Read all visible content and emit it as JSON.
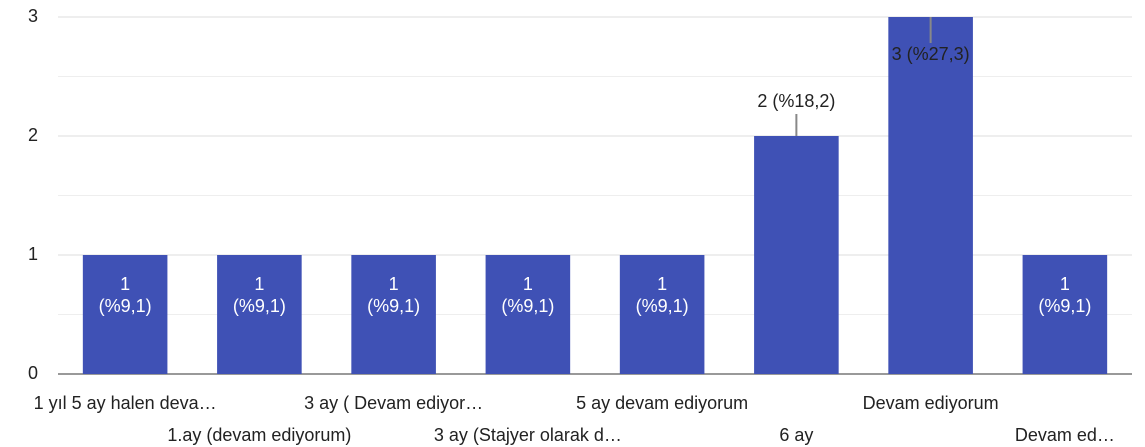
{
  "chart_data": {
    "type": "bar",
    "categories": [
      "1 yıl 5 ay halen deva…",
      "1.ay (devam ediyorum)",
      "3 ay ( Devam ediyor…",
      "3 ay (Stajyer olarak d…",
      "5 ay devam ediyorum",
      "6 ay",
      "Devam ediyorum",
      "Devam ed…"
    ],
    "values": [
      1,
      1,
      1,
      1,
      1,
      2,
      3,
      1
    ],
    "value_labels": [
      "1 (%9,1)",
      "1 (%9,1)",
      "1 (%9,1)",
      "1 (%9,1)",
      "1 (%9,1)",
      "2 (%18,2)",
      "3 (%27,3)",
      "1 (%9,1)"
    ],
    "color": "#3f51b5",
    "ylim": [
      0,
      3
    ],
    "yticks": [
      0,
      1,
      2,
      3
    ],
    "grid": true
  }
}
